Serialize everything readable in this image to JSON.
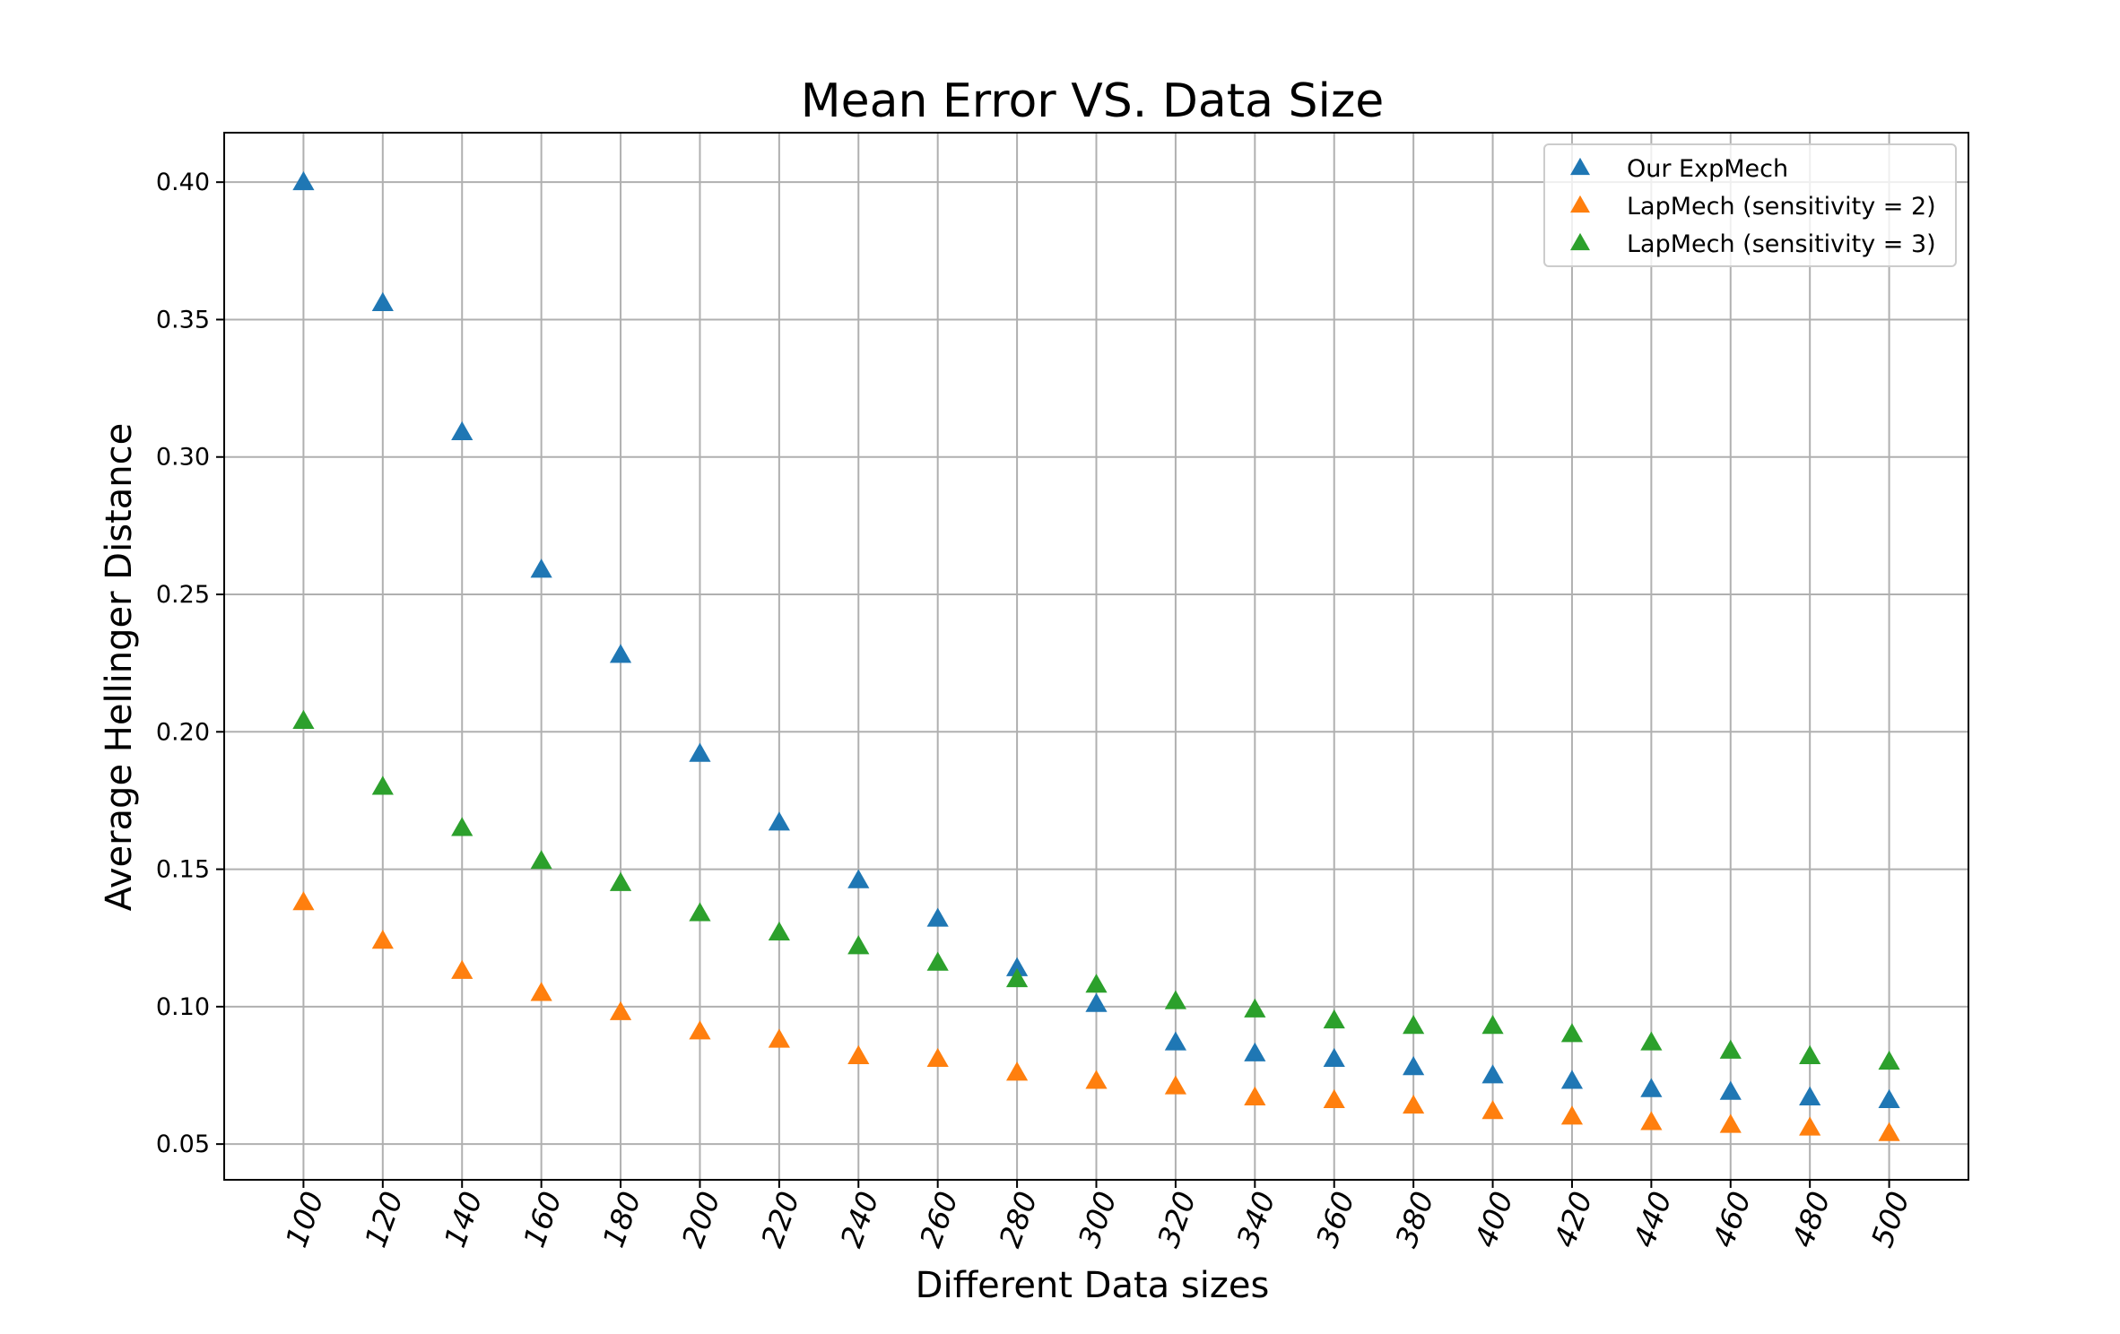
{
  "chart_data": {
    "type": "scatter",
    "title": "Mean Error VS. Data Size",
    "xlabel": "Different Data sizes",
    "ylabel": "Average Hellinger Distance",
    "x": [
      100,
      120,
      140,
      160,
      180,
      200,
      220,
      240,
      260,
      280,
      300,
      320,
      340,
      360,
      380,
      400,
      420,
      440,
      460,
      480,
      500
    ],
    "xticks": [
      "100",
      "120",
      "140",
      "160",
      "180",
      "200",
      "220",
      "240",
      "260",
      "280",
      "300",
      "320",
      "340",
      "360",
      "380",
      "400",
      "420",
      "440",
      "460",
      "480",
      "500"
    ],
    "yticks": [
      "0.05",
      "0.10",
      "0.15",
      "0.20",
      "0.25",
      "0.30",
      "0.35",
      "0.40"
    ],
    "xlim": [
      80,
      520
    ],
    "ylim": [
      0.037,
      0.418
    ],
    "grid": true,
    "legend_position": "top-right",
    "marker": "triangle-up",
    "series": [
      {
        "name": "Our ExpMech",
        "color": "#1f77b4",
        "values": [
          0.4,
          0.356,
          0.309,
          0.259,
          0.228,
          0.192,
          0.167,
          0.146,
          0.132,
          0.114,
          0.101,
          0.087,
          0.083,
          0.081,
          0.078,
          0.075,
          0.073,
          0.07,
          0.069,
          0.067,
          0.066
        ]
      },
      {
        "name": "LapMech (sensitivity = 2)",
        "color": "#ff7f0e",
        "values": [
          0.138,
          0.124,
          0.113,
          0.105,
          0.098,
          0.091,
          0.088,
          0.082,
          0.081,
          0.076,
          0.073,
          0.071,
          0.067,
          0.066,
          0.064,
          0.062,
          0.06,
          0.058,
          0.057,
          0.056,
          0.054
        ]
      },
      {
        "name": "LapMech (sensitivity = 3)",
        "color": "#2ca02c",
        "values": [
          0.204,
          0.18,
          0.165,
          0.153,
          0.145,
          0.134,
          0.127,
          0.122,
          0.116,
          0.11,
          0.108,
          0.102,
          0.099,
          0.095,
          0.093,
          0.093,
          0.09,
          0.087,
          0.084,
          0.082,
          0.08
        ]
      }
    ]
  }
}
